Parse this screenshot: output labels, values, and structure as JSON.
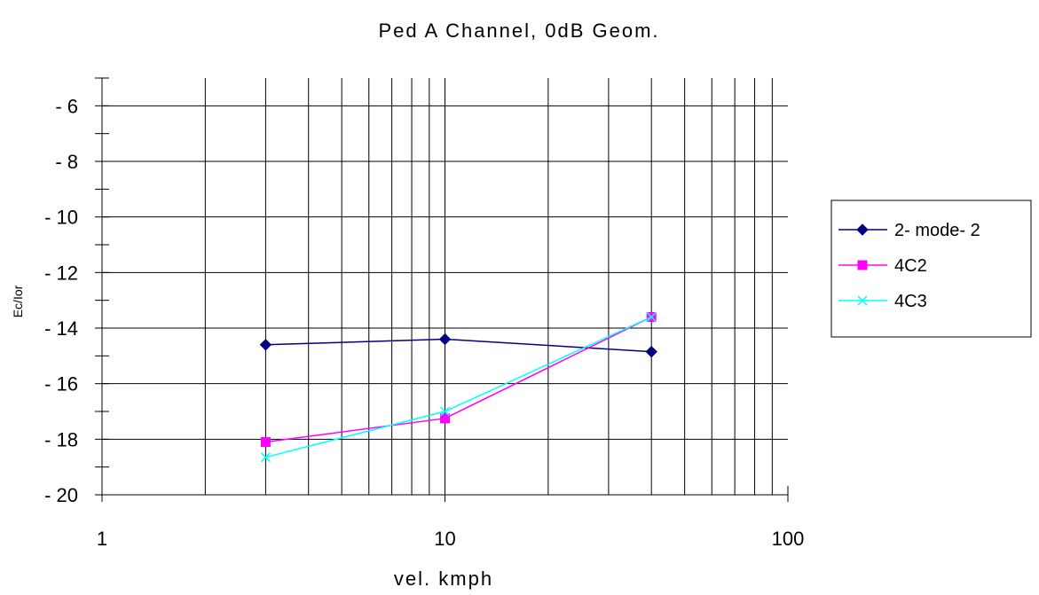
{
  "chart_data": {
    "type": "line",
    "title": "Ped A Channel, 0dB Geom.",
    "xlabel": "vel. kmph",
    "ylabel": "Ec/Ior",
    "x_scale": "log",
    "xlim": [
      1,
      100
    ],
    "ylim": [
      -20,
      -5
    ],
    "x_tick_labels": [
      "1",
      "10",
      "100"
    ],
    "y_tick_labels": [
      "- 6",
      "- 8",
      "- 10",
      "- 12",
      "- 14",
      "- 16",
      "- 18",
      "- 20"
    ],
    "grid": true,
    "legend_position": "right",
    "series": [
      {
        "name": "2- mode- 2",
        "color": "#000080",
        "marker": "diamond",
        "x": [
          3,
          10,
          40
        ],
        "y": [
          -14.6,
          -14.4,
          -14.85
        ]
      },
      {
        "name": "4C2",
        "color": "#ff00ff",
        "marker": "square",
        "x": [
          3,
          10,
          40
        ],
        "y": [
          -18.1,
          -17.25,
          -13.6
        ]
      },
      {
        "name": "4C3",
        "color": "#00ffff",
        "marker": "x",
        "x": [
          3,
          10,
          40
        ],
        "y": [
          -18.65,
          -17.0,
          -13.6
        ]
      }
    ]
  }
}
